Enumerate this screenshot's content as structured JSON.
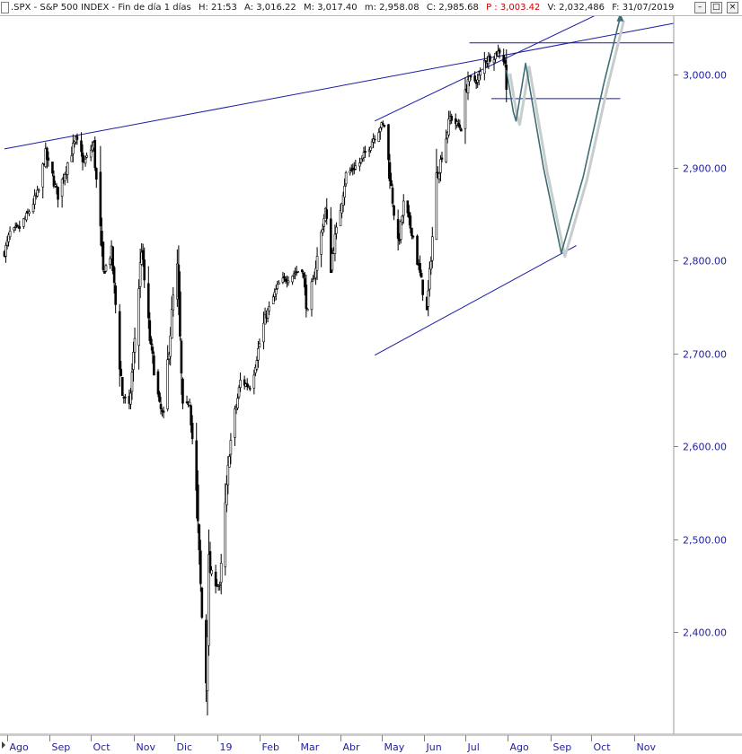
{
  "header": {
    "symbol": ".SPX",
    "name": "S&P 500 INDEX",
    "period": "Fin de día 1 días",
    "fields": [
      {
        "label": "H:",
        "value": "21:53"
      },
      {
        "label": "A:",
        "value": "3,016.22"
      },
      {
        "label": "M:",
        "value": "3,017.40"
      },
      {
        "label": "m:",
        "value": "2,958.08"
      },
      {
        "label": "C:",
        "value": "2,985.68"
      },
      {
        "label": "P :",
        "value": "3,003.42",
        "highlight": true
      },
      {
        "label": "V:",
        "value": "2,032,486"
      },
      {
        "label": "F:",
        "value": "31/07/2019"
      }
    ],
    "window_buttons": [
      "minimize",
      "maximize",
      "close"
    ]
  },
  "colors": {
    "candles": "#000000",
    "trendlines": "#1a1aa8",
    "projection": "#3d6d75",
    "axis_text": "#2020a0",
    "close_marker": "#c00000"
  },
  "chart_data": {
    "type": "candlestick",
    "title": ".SPX - S&P 500 INDEX - Fin de día 1 días",
    "y_axis": {
      "position": "right",
      "ticks": [
        2400,
        2500,
        2600,
        2700,
        2800,
        2900,
        3000
      ],
      "tick_labels": [
        "2,400.00",
        "2,500.00",
        "2,600.00",
        "2,700.00",
        "2,800.00",
        "2,900.00",
        "3,000.00"
      ],
      "ylim": [
        2335,
        3065
      ]
    },
    "x_axis": {
      "tick_labels": [
        "Ago",
        "Sep",
        "Oct",
        "Nov",
        "Dic",
        "19",
        "Feb",
        "Mar",
        "Abr",
        "May",
        "Jun",
        "Jul",
        "Ago",
        "Sep",
        "Oct",
        "Nov"
      ],
      "range": [
        "2018-07-30",
        "2019-11-30"
      ]
    },
    "price_anchors": [
      [
        "2018-07-30",
        2808
      ],
      [
        "2018-08-03",
        2830
      ],
      [
        "2018-08-10",
        2835
      ],
      [
        "2018-08-16",
        2850
      ],
      [
        "2018-08-24",
        2875
      ],
      [
        "2018-08-29",
        2914
      ],
      [
        "2018-09-07",
        2870
      ],
      [
        "2018-09-14",
        2905
      ],
      [
        "2018-09-20",
        2930
      ],
      [
        "2018-09-26",
        2905
      ],
      [
        "2018-10-03",
        2925
      ],
      [
        "2018-10-10",
        2785
      ],
      [
        "2018-10-16",
        2810
      ],
      [
        "2018-10-24",
        2656
      ],
      [
        "2018-10-29",
        2640
      ],
      [
        "2018-11-07",
        2813
      ],
      [
        "2018-11-12",
        2726
      ],
      [
        "2018-11-20",
        2642
      ],
      [
        "2018-11-23",
        2632
      ],
      [
        "2018-11-30",
        2760
      ],
      [
        "2018-12-03",
        2790
      ],
      [
        "2018-12-07",
        2633
      ],
      [
        "2018-12-12",
        2651
      ],
      [
        "2018-12-17",
        2545
      ],
      [
        "2018-12-21",
        2416
      ],
      [
        "2018-12-24",
        2351
      ],
      [
        "2018-12-26",
        2468
      ],
      [
        "2019-01-03",
        2448
      ],
      [
        "2019-01-10",
        2596
      ],
      [
        "2019-01-18",
        2670
      ],
      [
        "2019-01-25",
        2664
      ],
      [
        "2019-02-05",
        2737
      ],
      [
        "2019-02-15",
        2775
      ],
      [
        "2019-03-04",
        2792
      ],
      [
        "2019-03-08",
        2743
      ],
      [
        "2019-03-21",
        2854
      ],
      [
        "2019-03-25",
        2798
      ],
      [
        "2019-04-05",
        2892
      ],
      [
        "2019-04-15",
        2905
      ],
      [
        "2019-04-30",
        2945
      ],
      [
        "2019-05-03",
        2945
      ],
      [
        "2019-05-13",
        2812
      ],
      [
        "2019-05-17",
        2860
      ],
      [
        "2019-05-24",
        2826
      ],
      [
        "2019-06-03",
        2744
      ],
      [
        "2019-06-10",
        2886
      ],
      [
        "2019-06-20",
        2954
      ],
      [
        "2019-06-28",
        2942
      ],
      [
        "2019-07-03",
        2995
      ],
      [
        "2019-07-10",
        2993
      ],
      [
        "2019-07-15",
        3014
      ],
      [
        "2019-07-26",
        3025
      ],
      [
        "2019-07-30",
        3013
      ],
      [
        "2019-07-31",
        2980
      ]
    ],
    "trendlines": [
      {
        "name": "upper-resistance",
        "from": [
          "2018-07-30",
          2920
        ],
        "to": [
          "2019-11-30",
          3055
        ]
      },
      {
        "name": "channel-upper",
        "from": [
          "2019-04-26",
          2950
        ],
        "to": [
          "2019-10-20",
          3075
        ]
      },
      {
        "name": "channel-lower",
        "from": [
          "2019-04-26",
          2698
        ],
        "to": [
          "2019-09-20",
          2816
        ]
      },
      {
        "name": "horizontal-high",
        "from": [
          "2019-07-04",
          3034
        ],
        "to": [
          "2019-11-30",
          3034
        ]
      },
      {
        "name": "horizontal-support",
        "from": [
          "2019-07-20",
          2974
        ],
        "to": [
          "2019-10-22",
          2974
        ]
      }
    ],
    "projection_path": [
      [
        "2019-07-31",
        3005
      ],
      [
        "2019-08-05",
        2960
      ],
      [
        "2019-08-07",
        2950
      ],
      [
        "2019-08-11",
        2985
      ],
      [
        "2019-08-14",
        3012
      ],
      [
        "2019-08-27",
        2900
      ],
      [
        "2019-09-09",
        2808
      ],
      [
        "2019-09-25",
        2890
      ],
      [
        "2019-10-10",
        2990
      ],
      [
        "2019-10-22",
        3062
      ]
    ]
  }
}
